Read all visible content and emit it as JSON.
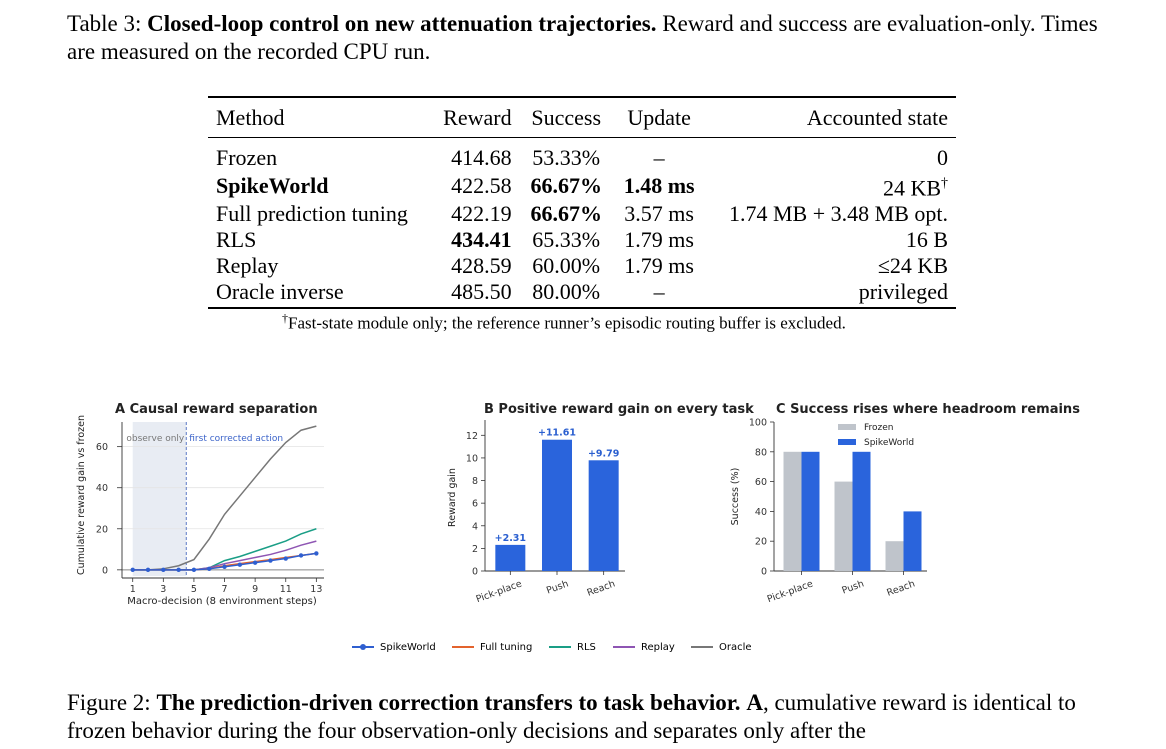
{
  "table": {
    "caption_label": "Table 3:",
    "caption_title": "Closed-loop control on new attenuation trajectories.",
    "caption_rest": "Reward and success are evaluation-only. Times are measured on the recorded CPU run.",
    "headers": [
      "Method",
      "Reward",
      "Success",
      "Update",
      "Accounted state"
    ],
    "rows": [
      {
        "method": "Frozen",
        "reward": "414.68",
        "success": "53.33%",
        "update": "–",
        "state": "0"
      },
      {
        "method": "SpikeWorld",
        "reward": "422.58",
        "success": "66.67%",
        "update": "1.48 ms",
        "state": "24 KB",
        "state_mark": "†"
      },
      {
        "method": "Full prediction tuning",
        "reward": "422.19",
        "success": "66.67%",
        "update": "3.57 ms",
        "state": "1.74 MB + 3.48 MB opt."
      },
      {
        "method": "RLS",
        "reward": "434.41",
        "success": "65.33%",
        "update": "1.79 ms",
        "state": "16 B"
      },
      {
        "method": "Replay",
        "reward": "428.59",
        "success": "60.00%",
        "update": "1.79 ms",
        "state": "≤24 KB"
      },
      {
        "method": "Oracle inverse",
        "reward": "485.50",
        "success": "80.00%",
        "update": "–",
        "state": "privileged"
      }
    ],
    "footnote_mark": "†",
    "footnote": "Fast-state module only; the reference runner’s episodic routing buffer is excluded."
  },
  "figure": {
    "legend": [
      {
        "name": "SpikeWorld",
        "color": "#2f5fd0",
        "marker": true
      },
      {
        "name": "Full tuning",
        "color": "#e3632d",
        "marker": false
      },
      {
        "name": "RLS",
        "color": "#1a9e86",
        "marker": false
      },
      {
        "name": "Replay",
        "color": "#8e55b3",
        "marker": false
      },
      {
        "name": "Oracle",
        "color": "#777777",
        "marker": false
      }
    ],
    "caption_label": "Figure 2:",
    "caption_title": "The prediction-driven correction transfers to task behavior.",
    "caption_bold_a": "A",
    "caption_rest": ", cumulative reward is identical to frozen behavior during the four observation-only decisions and separates only after the"
  },
  "chart_data": [
    {
      "type": "line",
      "title": "A  Causal reward separation",
      "xlabel": "Macro-decision (8 environment steps)",
      "ylabel": "Cumulative reward gain vs frozen",
      "x": [
        1,
        2,
        3,
        4,
        5,
        6,
        7,
        8,
        9,
        10,
        11,
        12,
        13
      ],
      "xticks": [
        "1",
        "3",
        "5",
        "7",
        "9",
        "11",
        "13"
      ],
      "xtick_values": [
        1,
        3,
        5,
        7,
        9,
        11,
        13
      ],
      "yticks": [
        "0",
        "20",
        "40",
        "60"
      ],
      "ytick_values": [
        0,
        20,
        40,
        60
      ],
      "xlim": [
        0.3,
        13.5
      ],
      "ylim": [
        -3,
        72
      ],
      "grid": true,
      "shade": {
        "from": 1,
        "to": 4.5,
        "label": "observe only"
      },
      "vline": {
        "x": 4.5,
        "label": "first corrected action"
      },
      "series": [
        {
          "name": "Oracle",
          "color": "#777777",
          "values": [
            0,
            0,
            0.5,
            2,
            5,
            15,
            27,
            36,
            45,
            54,
            62,
            68,
            70
          ]
        },
        {
          "name": "RLS",
          "color": "#1a9e86",
          "values": [
            0,
            0,
            0,
            0,
            0,
            1,
            4.5,
            6.5,
            9,
            11.5,
            14,
            17.5,
            20
          ]
        },
        {
          "name": "Replay",
          "color": "#8e55b3",
          "values": [
            0,
            0,
            0,
            0,
            0,
            1,
            3,
            4.5,
            6,
            7.5,
            9.5,
            12,
            14
          ]
        },
        {
          "name": "Full tuning",
          "color": "#e3632d",
          "values": [
            0,
            0,
            0,
            0,
            0,
            0.5,
            2,
            3,
            4,
            5,
            6,
            7,
            8
          ]
        },
        {
          "name": "SpikeWorld",
          "color": "#2f5fd0",
          "values": [
            0,
            0,
            0,
            0,
            0,
            0.5,
            1.5,
            2.5,
            3.5,
            4.5,
            5.5,
            7,
            8
          ]
        }
      ]
    },
    {
      "type": "bar",
      "title": "B  Positive reward gain on every task",
      "ylabel": "Reward gain",
      "categories": [
        "Pick-place",
        "Push",
        "Reach"
      ],
      "values": [
        2.31,
        11.61,
        9.79
      ],
      "data_labels": [
        "+2.31",
        "+11.61",
        "+9.79"
      ],
      "yticks": [
        "0",
        "2",
        "4",
        "6",
        "8",
        "10",
        "12"
      ],
      "ytick_values": [
        0,
        2,
        4,
        6,
        8,
        10,
        12
      ],
      "ylim": [
        0,
        13
      ],
      "color": "#2a64dc"
    },
    {
      "type": "bar",
      "title": "C  Success rises where headroom remains",
      "ylabel": "Success (%)",
      "categories": [
        "Pick-place",
        "Push",
        "Reach"
      ],
      "yticks": [
        "0",
        "20",
        "40",
        "60",
        "80",
        "100"
      ],
      "ytick_values": [
        0,
        20,
        40,
        60,
        80,
        100
      ],
      "ylim": [
        0,
        100
      ],
      "legend_position": "top-center",
      "series": [
        {
          "name": "Frozen",
          "color": "#bfc4cb",
          "values": [
            80,
            60,
            20
          ]
        },
        {
          "name": "SpikeWorld",
          "color": "#2a64dc",
          "values": [
            80,
            80,
            40
          ]
        }
      ]
    }
  ]
}
